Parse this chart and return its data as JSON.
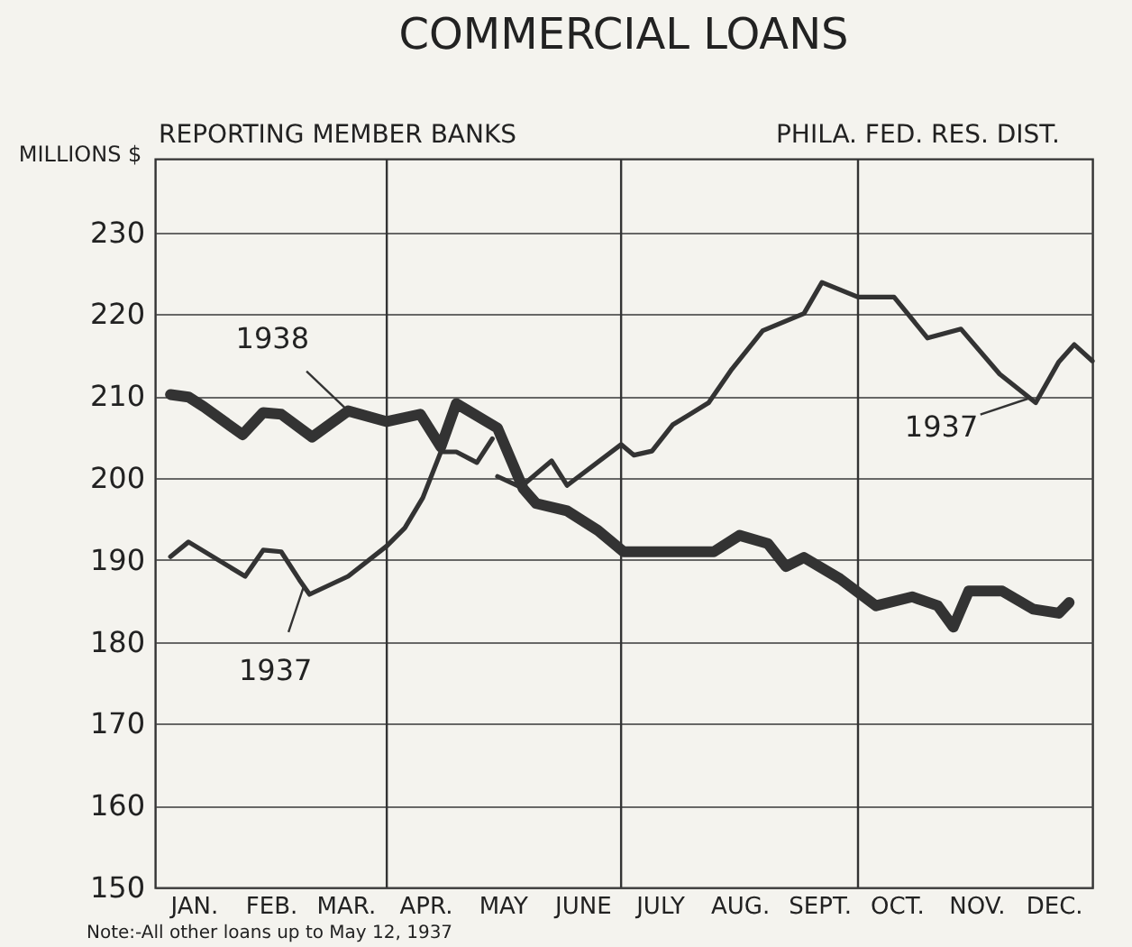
{
  "chart_data": {
    "type": "line",
    "title": "COMMERCIAL LOANS",
    "subtitle": "REPORTING MEMBER BANKS",
    "ylabel": "MILLIONS $",
    "xlim": [
      "--01-01",
      "--12-31"
    ],
    "ylim": [
      150,
      239
    ],
    "xticks": [
      {
        "value": "--01-16",
        "label": "JAN."
      },
      {
        "value": "--02-15",
        "label": "FEB."
      },
      {
        "value": "--03-16",
        "label": "MAR."
      },
      {
        "value": "--04-16",
        "label": "APR."
      },
      {
        "value": "--05-16",
        "label": "MAY"
      },
      {
        "value": "--06-16",
        "label": "JUNE"
      },
      {
        "value": "--07-16",
        "label": "JULY"
      },
      {
        "value": "--08-16",
        "label": "AUG."
      },
      {
        "value": "--09-16",
        "label": "SEPT."
      },
      {
        "value": "--10-16",
        "label": "OCT."
      },
      {
        "value": "--11-16",
        "label": "NOV."
      },
      {
        "value": "--12-16",
        "label": "DEC."
      }
    ],
    "yticks": [
      150,
      160,
      170,
      180,
      190,
      200,
      210,
      220,
      230
    ],
    "grid": "y",
    "marker": "none",
    "line_style": "solid",
    "ref_lines": [
      {
        "axis": "x",
        "value": "--04-01",
        "color": "#333333"
      },
      {
        "axis": "x",
        "value": "--07-01",
        "color": "#333333"
      },
      {
        "axis": "x",
        "value": "--10-01",
        "color": "#333333"
      }
    ],
    "series": [
      {
        "color": "#333333",
        "x": [
          "--01-07",
          "--01-14",
          "--01-20",
          "--02-04",
          "--02-12",
          "--02-19",
          "--03-03",
          "--03-17",
          "--04-01",
          "--04-14",
          "--04-22",
          "--04-28",
          "--05-14",
          "--05-24",
          "--05-29",
          "--06-10",
          "--06-22",
          "--07-02",
          "--08-06",
          "--08-16",
          "--08-27",
          "--09-03",
          "--09-10",
          "--09-24",
          "--10-08",
          "--10-22",
          "--11-01",
          "--11-07",
          "--11-13",
          "--11-26",
          "--12-08",
          "--12-18",
          "--12-22"
        ],
        "values": [
          210.2,
          209.9,
          208.7,
          205.3,
          208,
          207.8,
          205,
          208.2,
          206.9,
          207.8,
          203.8,
          209.1,
          206.1,
          198.7,
          196.9,
          196,
          193.6,
          191,
          191,
          193,
          192,
          189.2,
          190.3,
          187.7,
          184.4,
          185.5,
          184.4,
          181.8,
          186.2,
          186.2,
          184,
          183.5,
          184.8
        ]
      },
      {
        "color": "#333333",
        "x": [
          "--01-07",
          "--01-14",
          "--02-05",
          "--02-12",
          "--02-19",
          "--02-26",
          "--03-02",
          "--03-17",
          "--04-01",
          "--04-08",
          "--04-15",
          "--04-22",
          "--04-28",
          "--05-06",
          "--05-12",
          "--05-13",
          "--05-14",
          "--05-23",
          "--06-04",
          "--06-10",
          "--07-01",
          "--07-06",
          "--07-13",
          "--07-21",
          "--08-04",
          "--08-13",
          "--08-25",
          "--09-10",
          "--09-17",
          "--10-01",
          "--10-15",
          "--10-28",
          "--11-10",
          "--11-25",
          "--12-09",
          "--12-18",
          "--12-24",
          "--12-31"
        ],
        "values": [
          190.4,
          192.2,
          188,
          191.2,
          191,
          187.6,
          185.8,
          188,
          191.7,
          193.9,
          197.6,
          203.2,
          203.2,
          201.9,
          204.8,
          null,
          200.2,
          198.9,
          202.1,
          199.1,
          204.1,
          202.8,
          203.3,
          206.5,
          209.2,
          213.3,
          218,
          220.1,
          223.9,
          222.1,
          222.1,
          217.1,
          218.2,
          212.7,
          209.2,
          214.2,
          216.3,
          214.3
        ]
      }
    ],
    "annotations": [
      "PHILA. FED. RES. DIST.",
      {
        "text": "1938",
        "x": "--03-17",
        "y": 208.2
      },
      {
        "text": "1937",
        "x": "--02-28",
        "y": 187
      },
      {
        "text": "1937",
        "x": "--12-06",
        "y": 209.7
      },
      "Note:-All other loans up to May 12, 1937"
    ]
  }
}
